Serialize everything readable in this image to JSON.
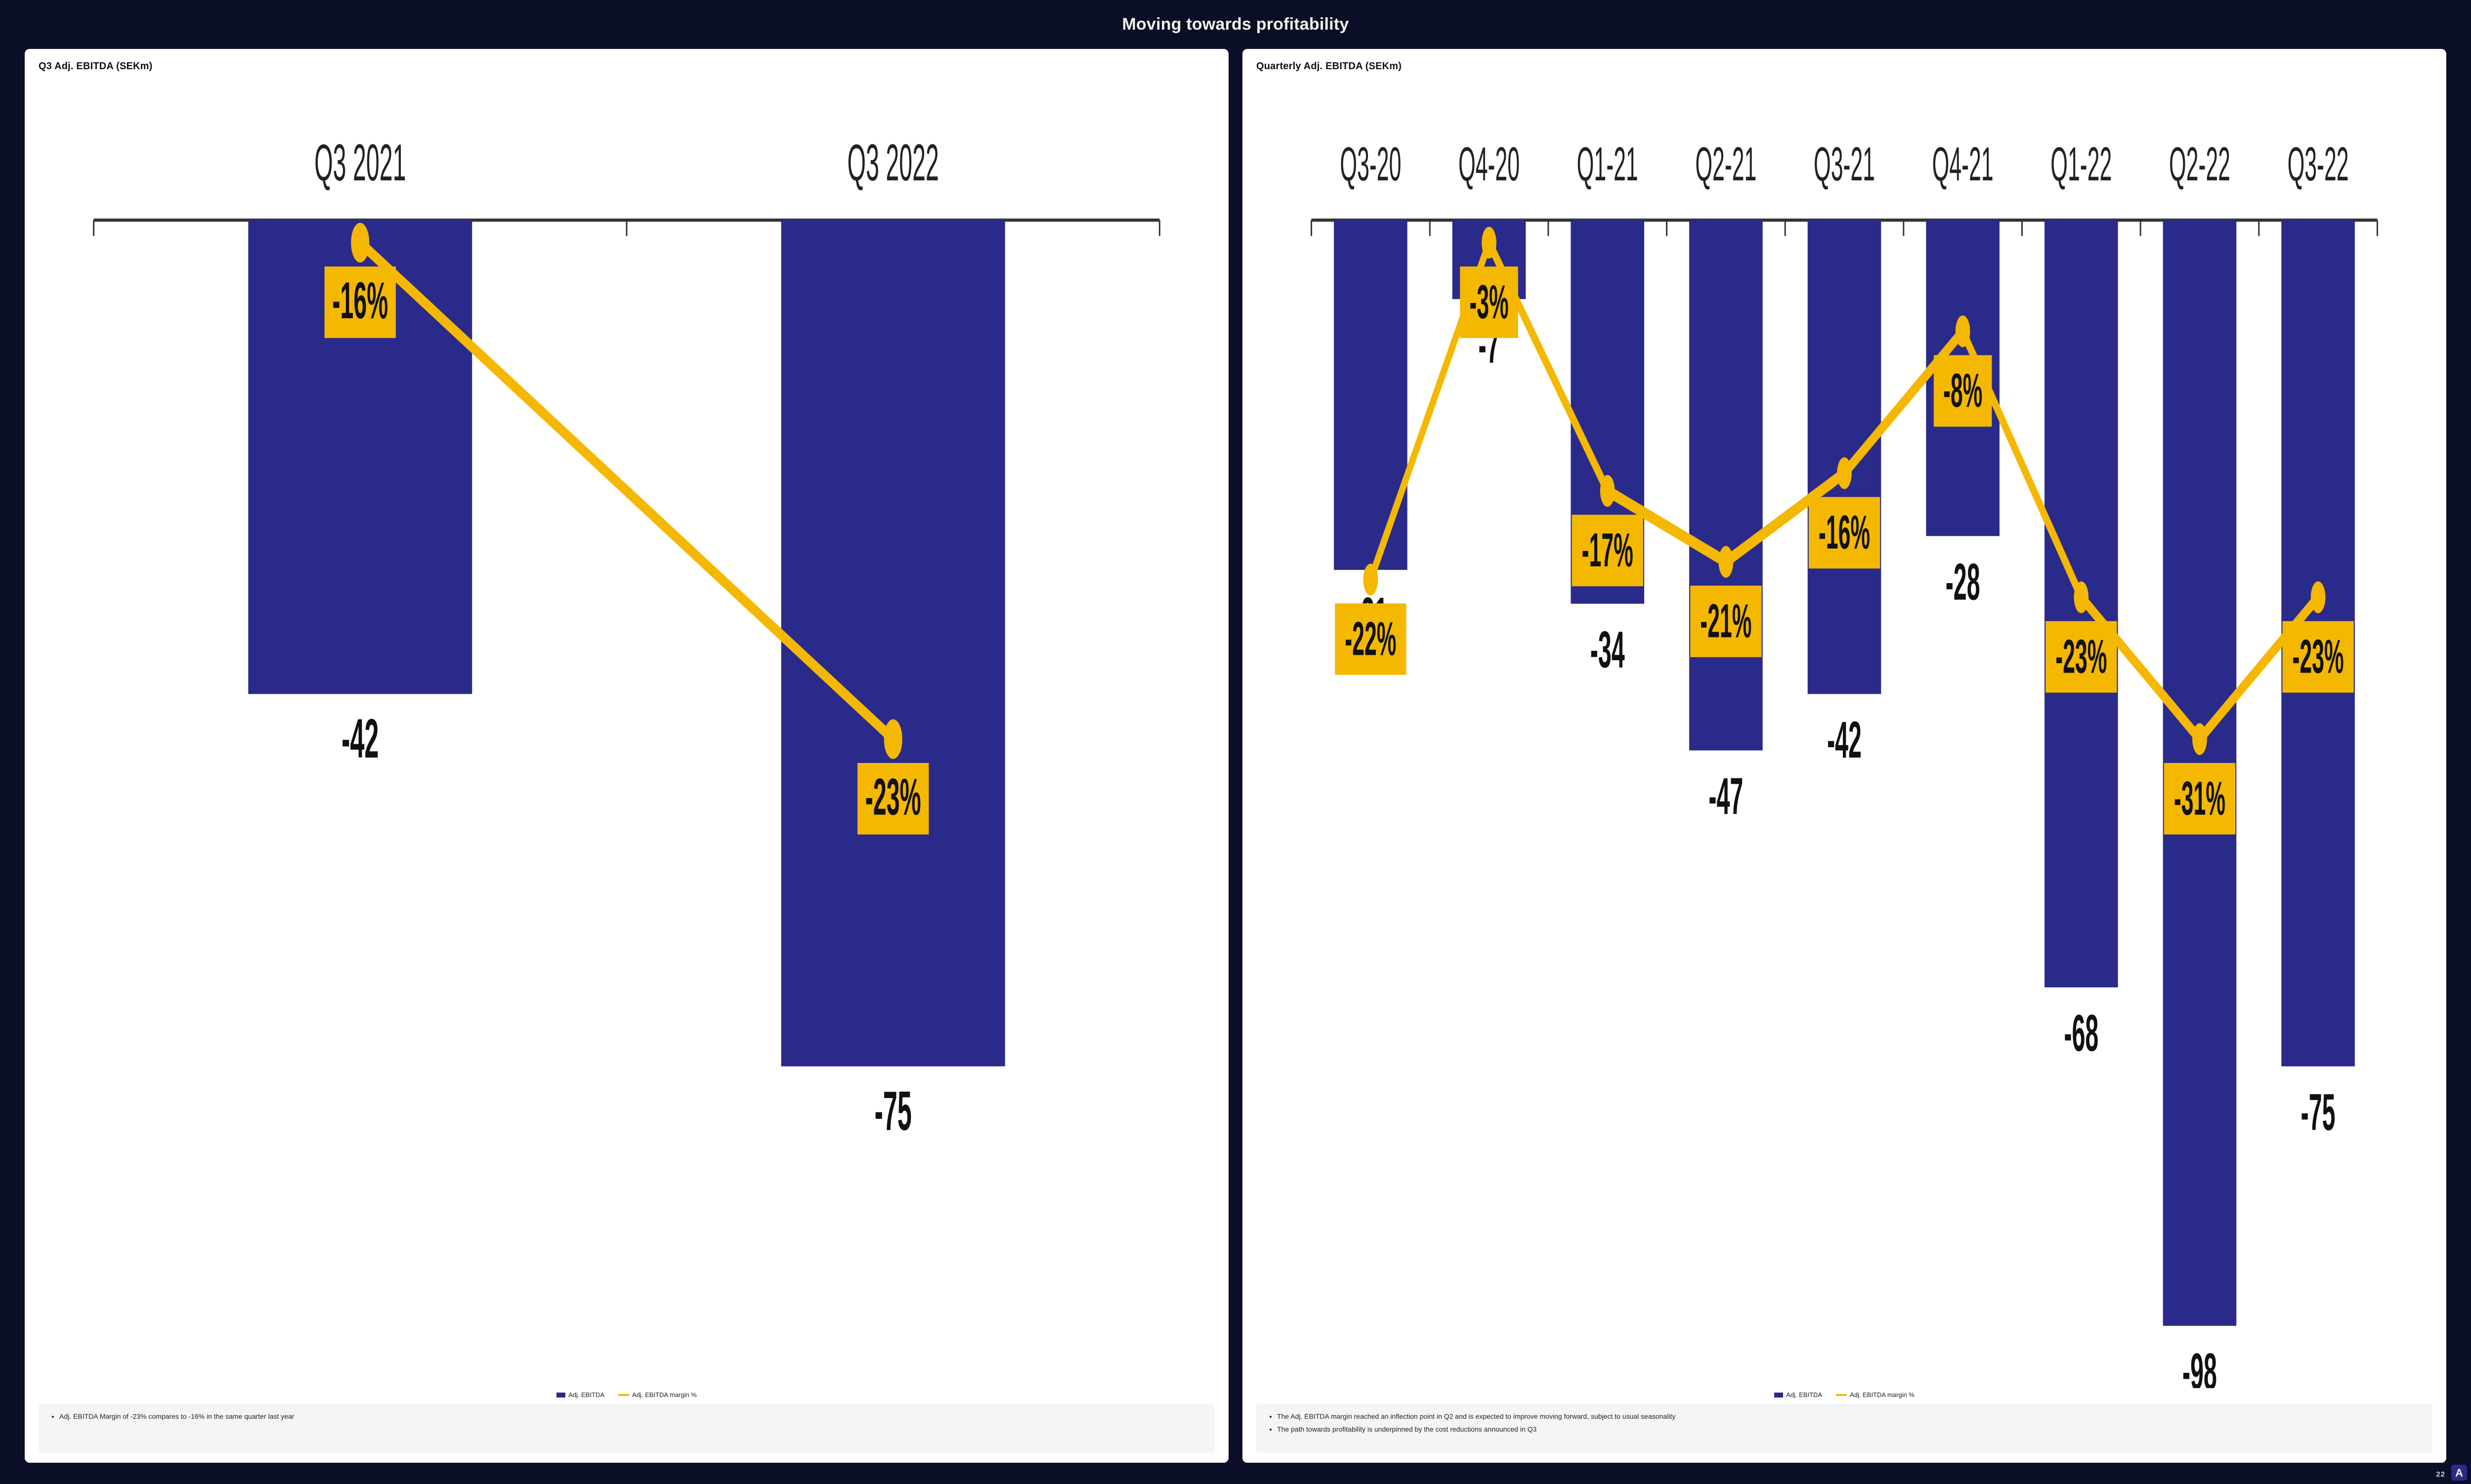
{
  "slide": {
    "title": "Moving towards profitability",
    "page_number": "22",
    "background_color": "#0a0e27",
    "title_color": "#f5f1e8",
    "title_fontsize": 34
  },
  "colors": {
    "bar": "#2a2a8a",
    "line": "#f5b800",
    "marker_label_bg": "#f5b800",
    "marker_label_text": "#111111",
    "axis": "#333333",
    "value_text": "#111111",
    "panel_bg": "#ffffff",
    "note_bg": "#f4f5f7"
  },
  "legend": {
    "bar_label": "Adj. EBITDA",
    "line_label": "Adj. EBITDA margin %"
  },
  "left_chart": {
    "title": "Q3 Adj. EBITDA (SEKm)",
    "type": "bar+line",
    "categories": [
      "Q3 2021",
      "Q3 2022"
    ],
    "bar_values": [
      -42,
      -75
    ],
    "bar_value_labels": [
      "-42",
      "-75"
    ],
    "margin_values": [
      -16,
      -23
    ],
    "margin_labels": [
      "-16%",
      "-23%"
    ],
    "y_min": -100,
    "y_max": 0,
    "bar_width_ratio": 0.42,
    "line_width": 3,
    "marker_size": 5,
    "category_fontsize": 13,
    "value_fontsize": 14,
    "margin_label_fontsize": 13,
    "notes": [
      "Adj. EBITDA Margin of -23% compares to -16% in the same quarter last year"
    ]
  },
  "right_chart": {
    "title": "Quarterly Adj. EBITDA (SEKm)",
    "type": "bar+line",
    "categories": [
      "Q3-20",
      "Q4-20",
      "Q1-21",
      "Q2-21",
      "Q3-21",
      "Q4-21",
      "Q1-22",
      "Q2-22",
      "Q3-22"
    ],
    "bar_values": [
      -31,
      -7,
      -34,
      -47,
      -42,
      -28,
      -68,
      -98,
      -75
    ],
    "bar_value_labels": [
      "-31",
      "-7",
      "-34",
      "-47",
      "-42",
      "-28",
      "-68",
      "-98",
      "-75"
    ],
    "margin_values": [
      -22,
      -3,
      -17,
      -21,
      -16,
      -8,
      -23,
      -31,
      -23
    ],
    "margin_labels": [
      "-22%",
      "-3%",
      "-17%",
      "-21%",
      "-16%",
      "-8%",
      "-23%",
      "-31%",
      "-23%"
    ],
    "y_min": -100,
    "y_max": 0,
    "bar_width_ratio": 0.62,
    "line_width": 3,
    "marker_size": 4,
    "category_fontsize": 12,
    "value_fontsize": 13,
    "margin_label_fontsize": 12,
    "notes": [
      "The Adj. EBITDA margin reached an inflection point in Q2 and is expected to improve moving forward, subject to usual seasonality",
      "The path towards profitability is underpinned by the cost reductions announced in Q3"
    ]
  },
  "logo": {
    "letter": "A",
    "bg": "#2a2a8a",
    "fg": "#f5f1e8"
  }
}
